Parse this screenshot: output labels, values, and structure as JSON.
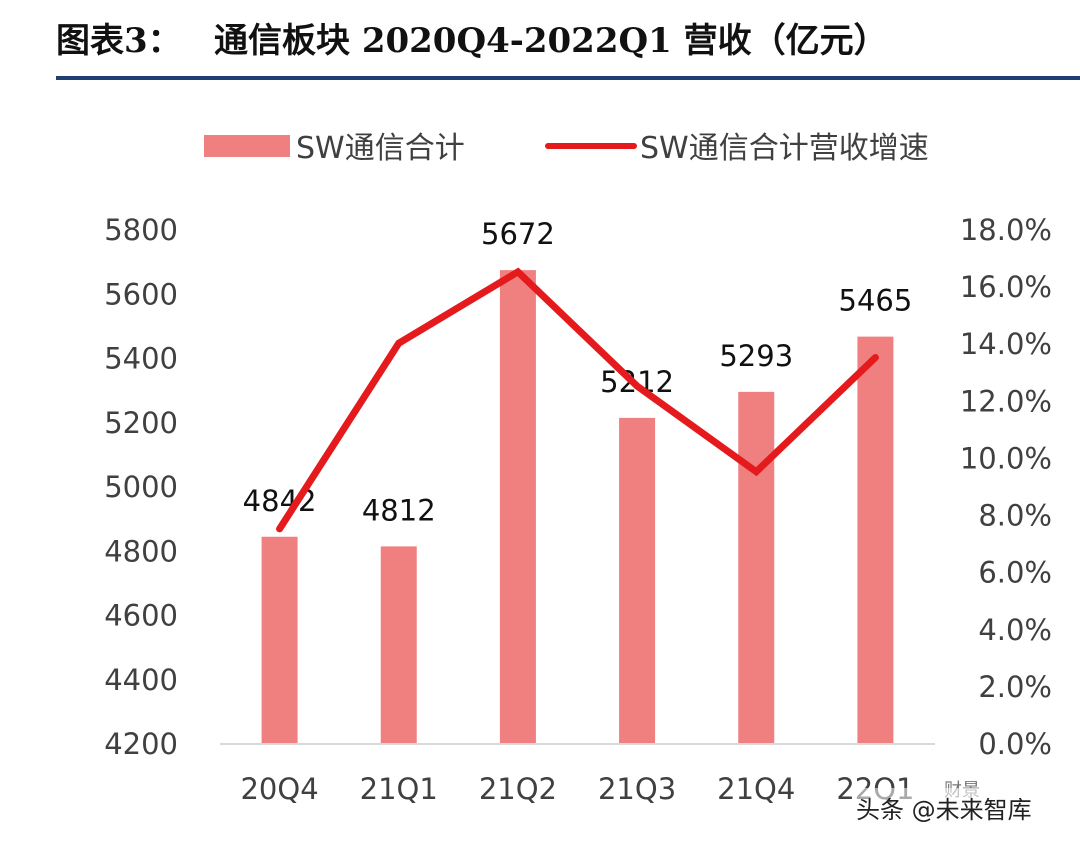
{
  "header": {
    "figure_label": "图表3：",
    "title": "通信板块 2020Q4-2022Q1 营收（亿元）"
  },
  "chart_data": {
    "type": "bar",
    "title": "通信板块 2020Q4-2022Q1 营收（亿元）",
    "categories": [
      "20Q4",
      "21Q1",
      "21Q2",
      "21Q3",
      "21Q4",
      "22Q1"
    ],
    "series": [
      {
        "name": "SW通信合计",
        "type": "bar",
        "axis": "left",
        "color": "#f08080",
        "values": [
          4842,
          4812,
          5672,
          5212,
          5293,
          5465
        ],
        "labels": [
          "4842",
          "4812",
          "5672",
          "5212",
          "5293",
          "5465"
        ]
      },
      {
        "name": "SW通信合计营收增速",
        "type": "line",
        "axis": "right",
        "color": "#e41a1c",
        "values": [
          7.5,
          14.0,
          16.5,
          12.5,
          9.5,
          13.5
        ]
      }
    ],
    "y_left": {
      "min": 4200,
      "max": 5800,
      "ticks": [
        "4200",
        "4400",
        "4600",
        "4800",
        "5000",
        "5200",
        "5400",
        "5600",
        "5800"
      ]
    },
    "y_right": {
      "min": 0,
      "max": 18,
      "ticks": [
        "0.0%",
        "2.0%",
        "4.0%",
        "6.0%",
        "8.0%",
        "10.0%",
        "12.0%",
        "14.0%",
        "16.0%",
        "18.0%"
      ]
    },
    "legend_position": "top",
    "grid": false
  },
  "watermark": {
    "text": "头条 @未来智库",
    "logo_text": "财景"
  }
}
